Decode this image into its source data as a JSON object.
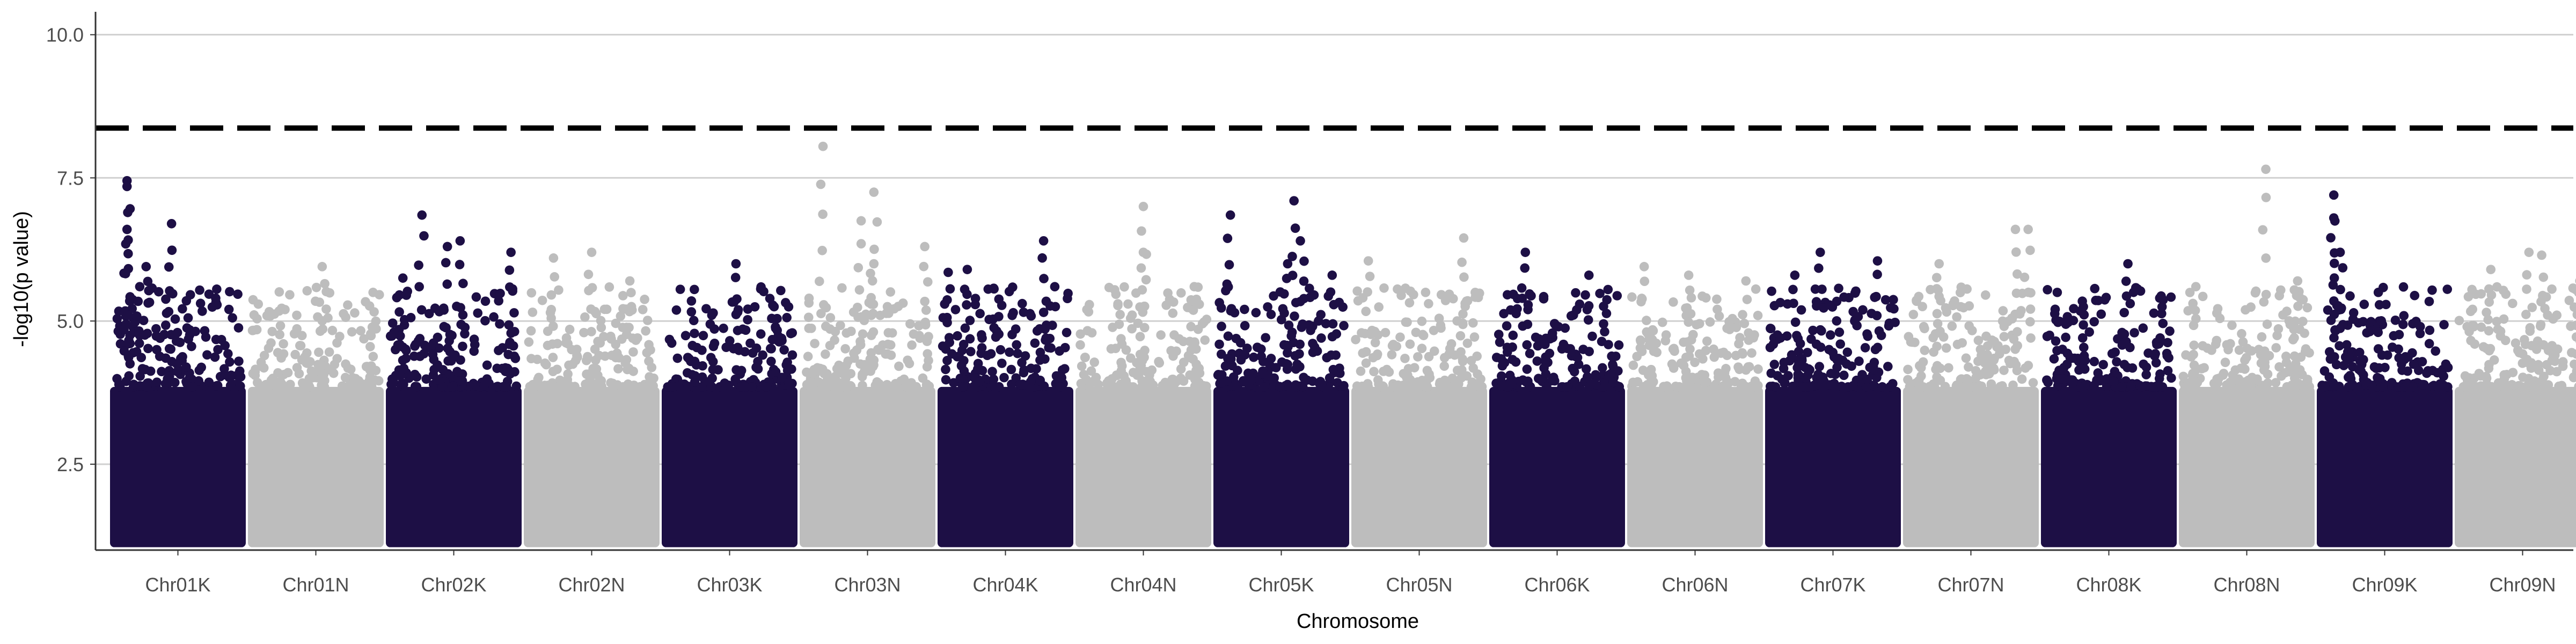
{
  "chart_data": {
    "type": "scatter",
    "title": "",
    "xlabel": "Chromosome",
    "ylabel": "-log10(p value)",
    "ylim": [
      1.0,
      10.4
    ],
    "yticks": [
      "2.5",
      "5.0",
      "7.5",
      "10.0"
    ],
    "ytick_values": [
      2.5,
      5.0,
      7.5,
      10.0
    ],
    "grid": "horizontal major lines only",
    "threshold": 8.37,
    "threshold_style": "dashed",
    "colors": {
      "K": "#1d0f45",
      "N": "#bdbdbd",
      "threshold": "#000000",
      "grid": "#d0d0d0",
      "axis": "#333333"
    },
    "chromosomes": [
      {
        "name": "Chr01K",
        "group": "K",
        "max": 7.45,
        "peaks": [
          [
            0.1,
            7.45
          ],
          [
            0.1,
            7.35
          ],
          [
            0.1,
            6.6
          ],
          [
            0.45,
            6.7
          ],
          [
            0.25,
            5.95
          ],
          [
            0.2,
            5.6
          ]
        ]
      },
      {
        "name": "Chr01N",
        "group": "N",
        "max": 5.95,
        "peaks": [
          [
            0.55,
            5.95
          ],
          [
            0.95,
            5.5
          ],
          [
            0.35,
            5.1
          ]
        ]
      },
      {
        "name": "Chr02K",
        "group": "K",
        "max": 6.85,
        "peaks": [
          [
            0.25,
            6.85
          ],
          [
            0.55,
            6.4
          ],
          [
            0.45,
            6.3
          ],
          [
            0.95,
            6.2
          ],
          [
            0.1,
            5.75
          ]
        ]
      },
      {
        "name": "Chr02N",
        "group": "N",
        "max": 6.2,
        "peaks": [
          [
            0.5,
            6.2
          ],
          [
            0.2,
            6.1
          ],
          [
            0.8,
            5.7
          ]
        ]
      },
      {
        "name": "Chr03K",
        "group": "K",
        "max": 6.0,
        "peaks": [
          [
            0.55,
            6.0
          ],
          [
            0.2,
            5.35
          ],
          [
            0.85,
            5.25
          ]
        ]
      },
      {
        "name": "Chr03N",
        "group": "N",
        "max": 8.05,
        "peaks": [
          [
            0.15,
            8.05
          ],
          [
            0.55,
            7.25
          ],
          [
            0.45,
            6.75
          ],
          [
            0.55,
            6.0
          ],
          [
            0.95,
            6.3
          ]
        ]
      },
      {
        "name": "Chr04K",
        "group": "K",
        "max": 6.4,
        "peaks": [
          [
            0.8,
            6.4
          ],
          [
            0.05,
            5.85
          ],
          [
            0.2,
            5.9
          ]
        ]
      },
      {
        "name": "Chr04N",
        "group": "N",
        "max": 7.0,
        "peaks": [
          [
            0.5,
            7.0
          ],
          [
            0.5,
            6.2
          ],
          [
            0.3,
            5.3
          ],
          [
            0.9,
            5.6
          ]
        ]
      },
      {
        "name": "Chr05K",
        "group": "K",
        "max": 7.1,
        "peaks": [
          [
            0.1,
            6.85
          ],
          [
            0.6,
            7.1
          ],
          [
            0.65,
            6.4
          ],
          [
            0.55,
            6.0
          ],
          [
            0.9,
            5.8
          ]
        ]
      },
      {
        "name": "Chr05N",
        "group": "N",
        "max": 6.45,
        "peaks": [
          [
            0.85,
            6.45
          ],
          [
            0.1,
            6.05
          ],
          [
            0.55,
            5.5
          ]
        ]
      },
      {
        "name": "Chr06K",
        "group": "K",
        "max": 6.2,
        "peaks": [
          [
            0.25,
            6.2
          ],
          [
            0.75,
            5.8
          ],
          [
            0.9,
            5.55
          ]
        ]
      },
      {
        "name": "Chr06N",
        "group": "N",
        "max": 5.95,
        "peaks": [
          [
            0.1,
            5.95
          ],
          [
            0.45,
            5.8
          ],
          [
            0.9,
            5.7
          ]
        ]
      },
      {
        "name": "Chr07K",
        "group": "K",
        "max": 6.2,
        "peaks": [
          [
            0.4,
            6.2
          ],
          [
            0.85,
            6.05
          ],
          [
            0.2,
            5.8
          ]
        ]
      },
      {
        "name": "Chr07N",
        "group": "N",
        "max": 6.6,
        "peaks": [
          [
            0.85,
            6.6
          ],
          [
            0.95,
            6.6
          ],
          [
            0.25,
            6.0
          ]
        ]
      },
      {
        "name": "Chr08K",
        "group": "K",
        "max": 6.0,
        "peaks": [
          [
            0.65,
            6.0
          ],
          [
            0.3,
            5.25
          ],
          [
            0.9,
            5.4
          ]
        ]
      },
      {
        "name": "Chr08N",
        "group": "N",
        "max": 7.65,
        "peaks": [
          [
            0.65,
            7.65
          ],
          [
            0.1,
            5.6
          ],
          [
            0.9,
            5.7
          ]
        ]
      },
      {
        "name": "Chr09K",
        "group": "K",
        "max": 7.2,
        "peaks": [
          [
            0.1,
            7.2
          ],
          [
            0.1,
            6.8
          ],
          [
            0.15,
            6.2
          ],
          [
            0.45,
            5.5
          ]
        ]
      },
      {
        "name": "Chr09N",
        "group": "N",
        "max": 6.2,
        "peaks": [
          [
            0.55,
            6.2
          ],
          [
            0.65,
            6.15
          ],
          [
            0.25,
            5.9
          ],
          [
            0.95,
            5.7
          ]
        ]
      }
    ]
  }
}
